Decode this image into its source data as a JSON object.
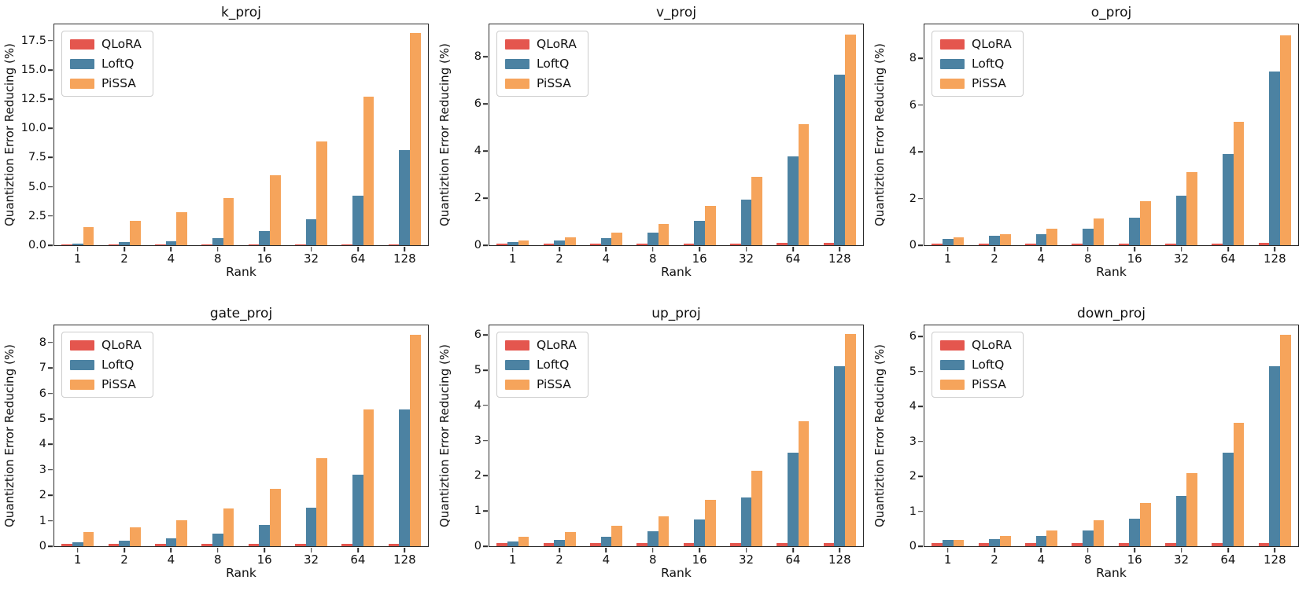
{
  "page": {
    "background": "#ffffff",
    "rows": 2,
    "cols": 3
  },
  "palette": {
    "qlora_red": "#E4564E",
    "loftq_blue": "#4C82A2",
    "pissa_orange": "#F6A45B"
  },
  "chart_data": [
    {
      "type": "bar",
      "title": "k_proj",
      "xlabel": "Rank",
      "ylabel": "Quantiztion Error Reducing (%)",
      "categories": [
        "1",
        "2",
        "4",
        "8",
        "16",
        "32",
        "64",
        "128"
      ],
      "series": [
        {
          "name": "QLoRA",
          "color": "#E4564E",
          "values": [
            0.06,
            0.06,
            0.07,
            0.07,
            0.07,
            0.08,
            0.08,
            0.08
          ]
        },
        {
          "name": "LoftQ",
          "color": "#4C82A2",
          "values": [
            0.15,
            0.24,
            0.37,
            0.63,
            1.2,
            2.24,
            4.24,
            8.13
          ]
        },
        {
          "name": "PiSSA",
          "color": "#F6A45B",
          "values": [
            1.57,
            2.09,
            2.83,
            4.04,
            5.96,
            8.85,
            12.74,
            18.15
          ]
        }
      ],
      "ylim": [
        0,
        18.9
      ],
      "yticks": [
        0.0,
        2.5,
        5.0,
        7.5,
        10.0,
        12.5,
        15.0,
        17.5
      ],
      "ytick_labels": [
        "0.0",
        "2.5",
        "5.0",
        "7.5",
        "10.0",
        "12.5",
        "15.0",
        "17.5"
      ],
      "legend_position": "upper left",
      "grid": false
    },
    {
      "type": "bar",
      "title": "v_proj",
      "xlabel": "Rank",
      "ylabel": "Quantiztion Error Reducing (%)",
      "categories": [
        "1",
        "2",
        "4",
        "8",
        "16",
        "32",
        "64",
        "128"
      ],
      "series": [
        {
          "name": "QLoRA",
          "color": "#E4564E",
          "values": [
            0.08,
            0.08,
            0.08,
            0.08,
            0.08,
            0.08,
            0.09,
            0.09
          ]
        },
        {
          "name": "LoftQ",
          "color": "#4C82A2",
          "values": [
            0.13,
            0.19,
            0.31,
            0.55,
            1.02,
            1.95,
            3.78,
            7.26
          ]
        },
        {
          "name": "PiSSA",
          "color": "#F6A45B",
          "values": [
            0.2,
            0.33,
            0.53,
            0.89,
            1.66,
            2.91,
            5.13,
            8.95
          ]
        }
      ],
      "ylim": [
        0,
        9.38
      ],
      "yticks": [
        0,
        2,
        4,
        6,
        8
      ],
      "ytick_labels": [
        "0",
        "2",
        "4",
        "6",
        "8"
      ],
      "legend_position": "upper left",
      "grid": false
    },
    {
      "type": "bar",
      "title": "o_proj",
      "xlabel": "Rank",
      "ylabel": "Quantiztion Error Reducing (%)",
      "categories": [
        "1",
        "2",
        "4",
        "8",
        "16",
        "32",
        "64",
        "128"
      ],
      "series": [
        {
          "name": "QLoRA",
          "color": "#E4564E",
          "values": [
            0.08,
            0.08,
            0.08,
            0.08,
            0.08,
            0.08,
            0.08,
            0.09
          ]
        },
        {
          "name": "LoftQ",
          "color": "#4C82A2",
          "values": [
            0.28,
            0.42,
            0.48,
            0.72,
            1.18,
            2.12,
            3.91,
            7.44
          ]
        },
        {
          "name": "PiSSA",
          "color": "#F6A45B",
          "values": [
            0.33,
            0.48,
            0.7,
            1.13,
            1.87,
            3.12,
            5.29,
            8.98
          ]
        }
      ],
      "ylim": [
        0,
        9.46
      ],
      "yticks": [
        0,
        2,
        4,
        6,
        8
      ],
      "ytick_labels": [
        "0",
        "2",
        "4",
        "6",
        "8"
      ],
      "legend_position": "upper left",
      "grid": false
    },
    {
      "type": "bar",
      "title": "gate_proj",
      "xlabel": "Rank",
      "ylabel": "Quantiztion Error Reducing (%)",
      "categories": [
        "1",
        "2",
        "4",
        "8",
        "16",
        "32",
        "64",
        "128"
      ],
      "series": [
        {
          "name": "QLoRA",
          "color": "#E4564E",
          "values": [
            0.09,
            0.09,
            0.09,
            0.09,
            0.09,
            0.1,
            0.1,
            0.1
          ]
        },
        {
          "name": "LoftQ",
          "color": "#4C82A2",
          "values": [
            0.14,
            0.21,
            0.3,
            0.49,
            0.84,
            1.5,
            2.82,
            5.37
          ]
        },
        {
          "name": "PiSSA",
          "color": "#F6A45B",
          "values": [
            0.56,
            0.75,
            1.03,
            1.49,
            2.26,
            3.46,
            5.37,
            8.31
          ]
        }
      ],
      "ylim": [
        0,
        8.67
      ],
      "yticks": [
        0,
        1,
        2,
        3,
        4,
        5,
        6,
        7,
        8
      ],
      "ytick_labels": [
        "0",
        "1",
        "2",
        "3",
        "4",
        "5",
        "6",
        "7",
        "8"
      ],
      "legend_position": "upper left",
      "grid": false
    },
    {
      "type": "bar",
      "title": "up_proj",
      "xlabel": "Rank",
      "ylabel": "Quantiztion Error Reducing (%)",
      "categories": [
        "1",
        "2",
        "4",
        "8",
        "16",
        "32",
        "64",
        "128"
      ],
      "series": [
        {
          "name": "QLoRA",
          "color": "#E4564E",
          "values": [
            0.09,
            0.09,
            0.09,
            0.09,
            0.09,
            0.09,
            0.1,
            0.1
          ]
        },
        {
          "name": "LoftQ",
          "color": "#4C82A2",
          "values": [
            0.14,
            0.19,
            0.27,
            0.42,
            0.76,
            1.39,
            2.65,
            5.11
          ]
        },
        {
          "name": "PiSSA",
          "color": "#F6A45B",
          "values": [
            0.27,
            0.4,
            0.57,
            0.84,
            1.32,
            2.14,
            3.55,
            6.02
          ]
        }
      ],
      "ylim": [
        0,
        6.27
      ],
      "yticks": [
        0,
        1,
        2,
        3,
        4,
        5,
        6
      ],
      "ytick_labels": [
        "0",
        "1",
        "2",
        "3",
        "4",
        "5",
        "6"
      ],
      "legend_position": "upper left",
      "grid": false
    },
    {
      "type": "bar",
      "title": "down_proj",
      "xlabel": "Rank",
      "ylabel": "Quantiztion Error Reducing (%)",
      "categories": [
        "1",
        "2",
        "4",
        "8",
        "16",
        "32",
        "64",
        "128"
      ],
      "series": [
        {
          "name": "QLoRA",
          "color": "#E4564E",
          "values": [
            0.1,
            0.1,
            0.1,
            0.1,
            0.1,
            0.1,
            0.1,
            0.1
          ]
        },
        {
          "name": "LoftQ",
          "color": "#4C82A2",
          "values": [
            0.17,
            0.21,
            0.29,
            0.46,
            0.79,
            1.43,
            2.68,
            5.16
          ]
        },
        {
          "name": "PiSSA",
          "color": "#F6A45B",
          "values": [
            0.19,
            0.3,
            0.45,
            0.75,
            1.24,
            2.09,
            3.54,
            6.05
          ]
        }
      ],
      "ylim": [
        0,
        6.32
      ],
      "yticks": [
        0,
        1,
        2,
        3,
        4,
        5,
        6
      ],
      "ytick_labels": [
        "0",
        "1",
        "2",
        "3",
        "4",
        "5",
        "6"
      ],
      "legend_position": "upper left",
      "grid": false
    }
  ]
}
